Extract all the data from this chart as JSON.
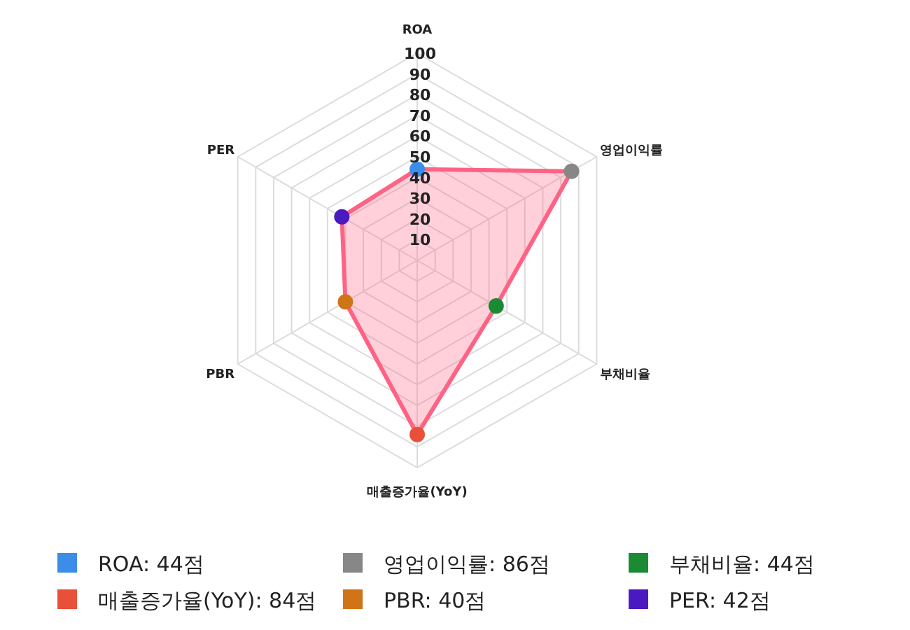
{
  "chart_data": {
    "type": "radar",
    "categories": [
      "ROA",
      "영업이익률",
      "부채비율",
      "매출증가율(YoY)",
      "PBR",
      "PER"
    ],
    "ylim": [
      0,
      100
    ],
    "yticks": [
      10,
      20,
      30,
      40,
      50,
      60,
      70,
      80,
      90,
      100
    ],
    "grid": true,
    "marker": "circle",
    "line_style": "solid",
    "series": [
      {
        "color": "#ff6384",
        "values": [
          44,
          86,
          44,
          84,
          40,
          42
        ],
        "colors": [
          "#3b8de8",
          "#878787",
          "#1a8a33",
          "#e8503a",
          "#d07418",
          "#4a1ac0"
        ]
      }
    ],
    "annotations": [
      "ROA: 44점",
      "영업이익률: 86점",
      "부채비율: 44점",
      "매출증가율(YoY): 84점",
      "PBR: 40점",
      "PER: 42점"
    ]
  }
}
